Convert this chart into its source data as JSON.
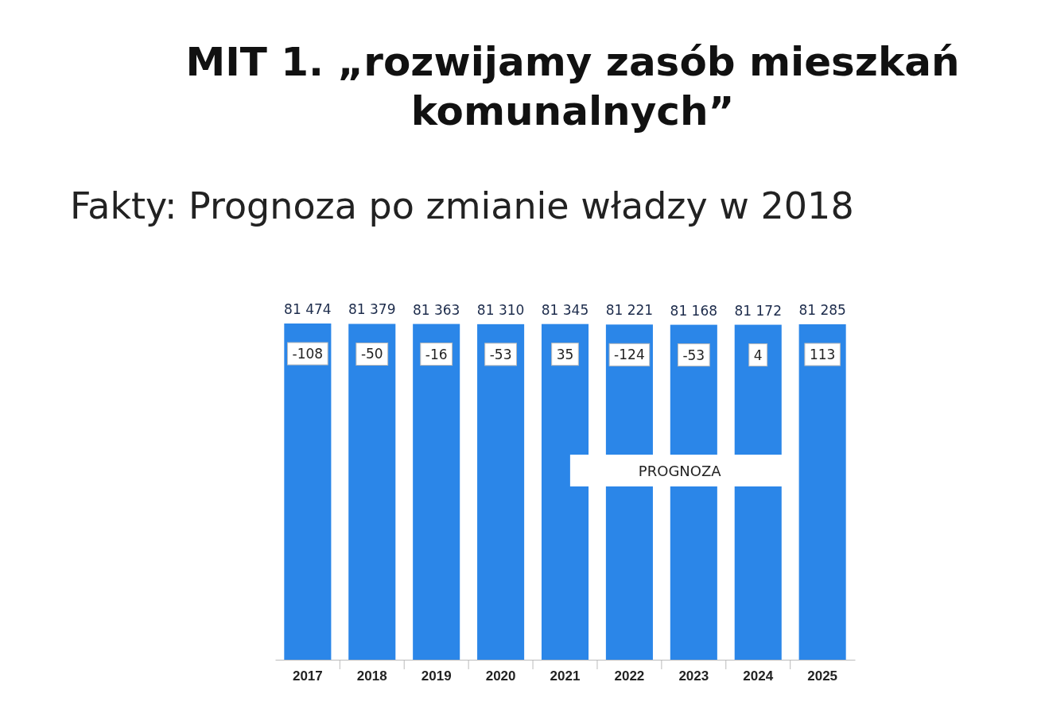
{
  "chart_data": {
    "type": "bar",
    "title": "MIT 1. „rozwijamy zasób mieszkań komunalnych”",
    "subtitle": "Fakty: Prognoza po zmianie władzy w 2018",
    "categories": [
      "2017",
      "2018",
      "2019",
      "2020",
      "2021",
      "2022",
      "2023",
      "2024",
      "2025"
    ],
    "values": [
      81474,
      81379,
      81363,
      81310,
      81345,
      81221,
      81168,
      81172,
      81285
    ],
    "value_labels": [
      "81 474",
      "81 379",
      "81 363",
      "81 310",
      "81 345",
      "81 221",
      "81 168",
      "81 172",
      "81 285"
    ],
    "color": "#2b86e8",
    "annotations": [
      "-108",
      "-50",
      "-16",
      "-53",
      "35",
      "-124",
      "-53",
      "4",
      "113",
      "PROGNOZA"
    ]
  }
}
